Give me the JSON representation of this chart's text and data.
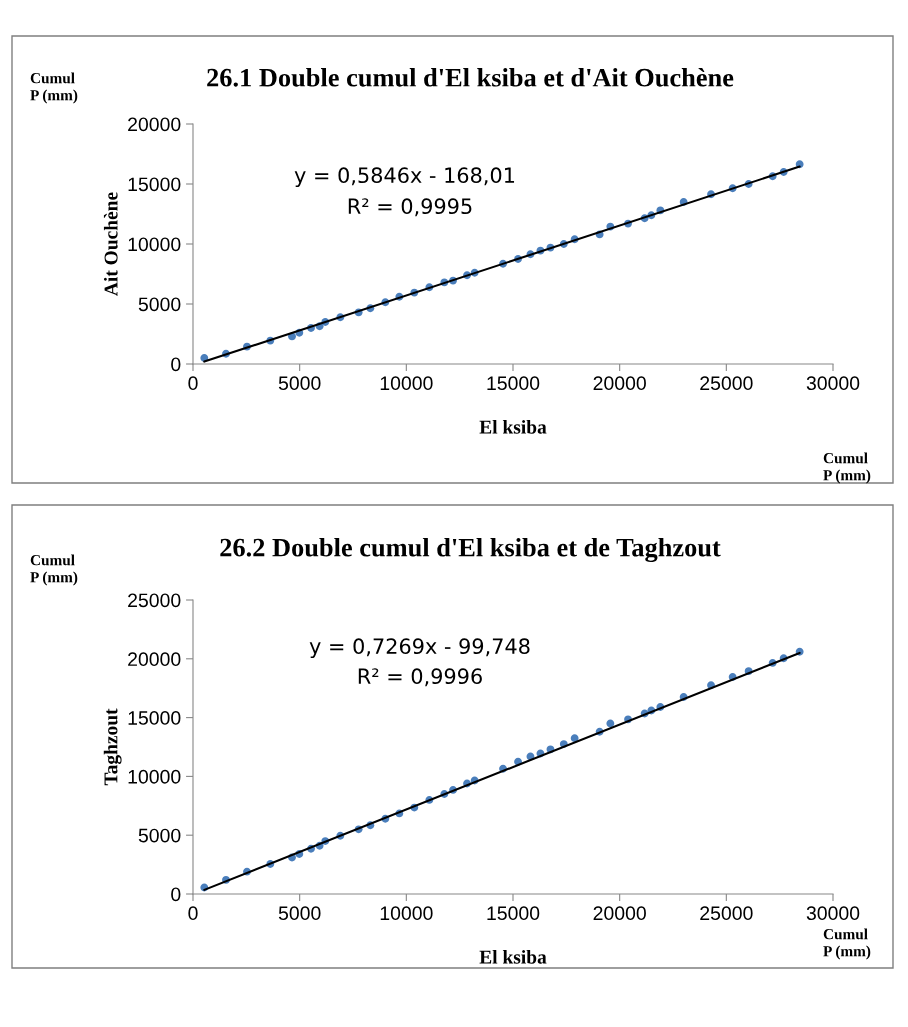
{
  "chart_data": [
    {
      "type": "scatter",
      "title": "26.1 Double cumul d'El ksiba et d'Ait Ouchène",
      "xlabel": "El ksiba",
      "ylabel": "Ait Ouchène",
      "annotations": [
        "y = 0,5846x - 168,01",
        "R² = 0,9995",
        "Cumul\nP (mm)",
        "Cumul\nP (mm)"
      ],
      "xlim": [
        0,
        30000
      ],
      "xticks": [
        0,
        5000,
        10000,
        15000,
        20000,
        25000,
        30000
      ],
      "ylim": [
        0,
        20000
      ],
      "yticks": [
        0,
        5000,
        10000,
        15000,
        20000
      ],
      "series": [
        {
          "marker": "circle",
          "color": "#4a7ebb",
          "x": [
            530,
            1547,
            2531,
            3624,
            4641,
            4983,
            5532,
            5935,
            6202,
            6906,
            7764,
            8313,
            9016,
            9672,
            10375,
            11079,
            11782,
            12190,
            12846,
            13202,
            14533,
            15237,
            15818,
            16287,
            16756,
            17381,
            17890,
            19061,
            19563,
            20393,
            21171,
            21485,
            21907,
            22999,
            24283,
            25296,
            26046,
            27171,
            27687,
            28437
          ],
          "values": [
            500,
            850,
            1450,
            1950,
            2300,
            2600,
            3000,
            3150,
            3500,
            3900,
            4300,
            4650,
            5150,
            5600,
            5950,
            6400,
            6800,
            6950,
            7400,
            7600,
            8350,
            8750,
            9150,
            9450,
            9700,
            10000,
            10400,
            10800,
            11450,
            11700,
            12150,
            12400,
            12800,
            13500,
            14150,
            14650,
            15000,
            15650,
            16000,
            16650
          ]
        },
        {
          "type": "line",
          "marker": "none",
          "color": "#000000",
          "x": [
            530,
            28437
          ],
          "values": [
            200,
            16450
          ]
        }
      ]
    },
    {
      "type": "scatter",
      "title": "26.2 Double cumul d'El ksiba et de Taghzout",
      "xlabel": "El ksiba",
      "ylabel": "Taghzout",
      "annotations": [
        "y = 0,7269x - 99,748",
        "R² = 0,9996",
        "Cumul\nP (mm)",
        "Cumul\nP (mm)"
      ],
      "xlim": [
        0,
        30000
      ],
      "xticks": [
        0,
        5000,
        10000,
        15000,
        20000,
        25000,
        30000
      ],
      "ylim": [
        0,
        25000
      ],
      "yticks": [
        0,
        5000,
        10000,
        15000,
        20000,
        25000
      ],
      "series": [
        {
          "marker": "circle",
          "color": "#4a7ebb",
          "x": [
            530,
            1547,
            2531,
            3624,
            4641,
            4983,
            5532,
            5935,
            6202,
            6906,
            7764,
            8313,
            9016,
            9672,
            10375,
            11079,
            11782,
            12190,
            12846,
            13202,
            14533,
            15237,
            15818,
            16287,
            16756,
            17381,
            17890,
            19061,
            19563,
            20393,
            21171,
            21485,
            21907,
            22999,
            24283,
            25296,
            26046,
            27171,
            27687,
            28437
          ],
          "values": [
            550,
            1200,
            1900,
            2550,
            3100,
            3400,
            3850,
            4100,
            4500,
            4950,
            5500,
            5850,
            6400,
            6850,
            7350,
            8000,
            8500,
            8850,
            9400,
            9650,
            10650,
            11250,
            11700,
            11950,
            12300,
            12750,
            13250,
            13800,
            14500,
            14850,
            15350,
            15600,
            15900,
            16750,
            17750,
            18450,
            18950,
            19650,
            20050,
            20600
          ]
        },
        {
          "type": "line",
          "marker": "none",
          "color": "#000000",
          "x": [
            530,
            28437
          ],
          "values": [
            350,
            20500
          ]
        }
      ]
    }
  ]
}
